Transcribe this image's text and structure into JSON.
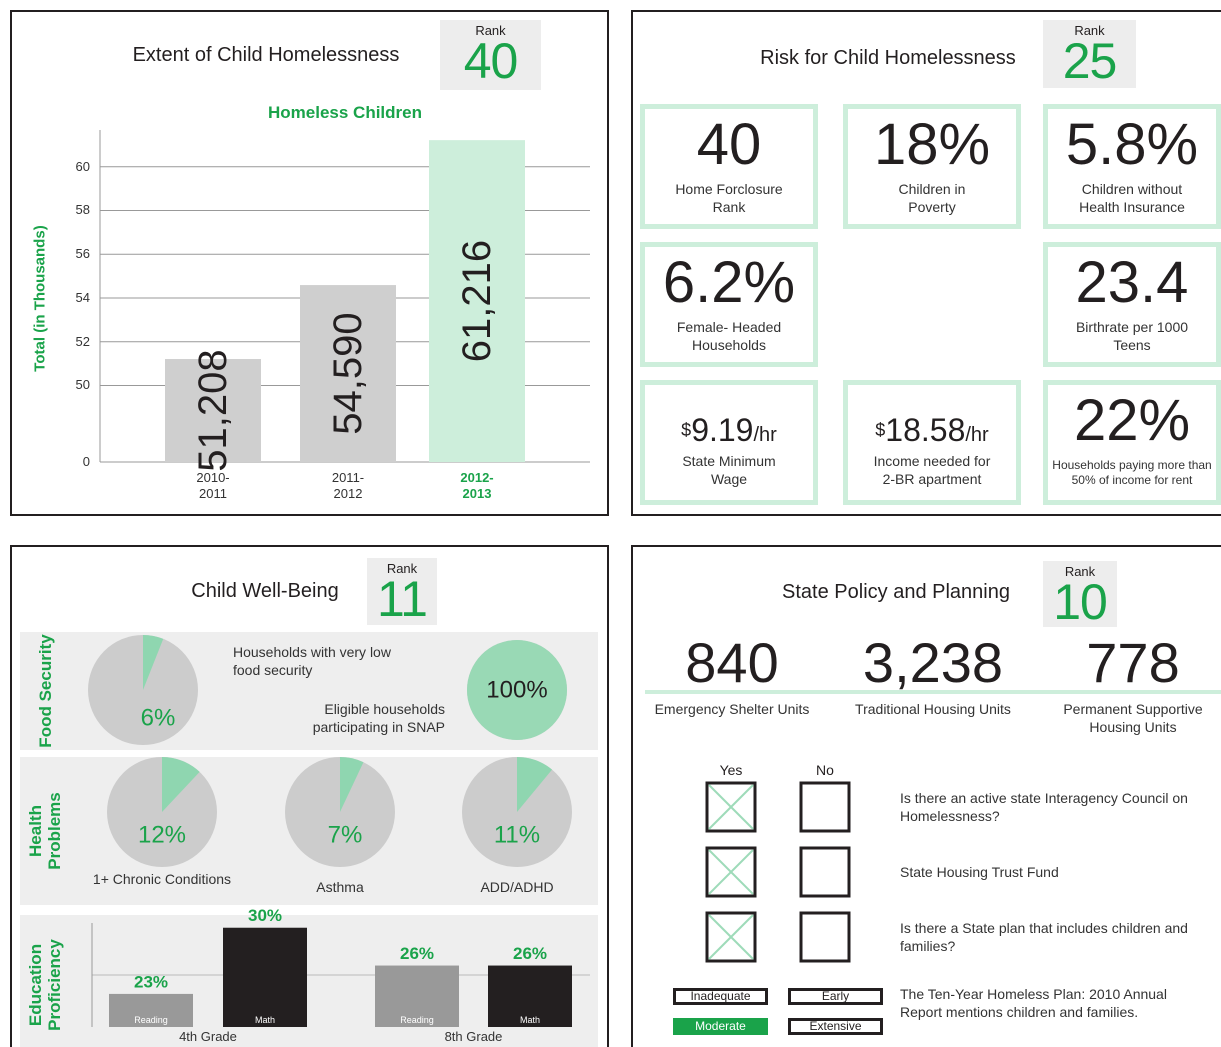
{
  "extent": {
    "title": "Extent of Child Homelessness",
    "rank_label": "Rank",
    "rank": "40"
  },
  "risk": {
    "title": "Risk for Child Homelessness",
    "rank_label": "Rank",
    "rank": "25",
    "stats": [
      {
        "value": "40",
        "label": "Home Forclosure Rank"
      },
      {
        "value": "18%",
        "label": "Children in Poverty"
      },
      {
        "value": "5.8%",
        "label": "Children without Health Insurance"
      },
      {
        "value": "6.2%",
        "label": "Female- Headed Households"
      },
      {
        "value": "23.4",
        "label": "Birthrate per 1000 Teens"
      },
      {
        "prefix": "$",
        "value": "9.19",
        "suffix": "/hr",
        "label": "State Minimum Wage"
      },
      {
        "prefix": "$",
        "value": "18.58",
        "suffix": "/hr",
        "label": "Income needed for 2-BR apartment"
      },
      {
        "value": "22%",
        "label": "Households paying more than 50% of income for rent"
      }
    ]
  },
  "well_being": {
    "title": "Child Well-Being",
    "rank_label": "Rank",
    "rank": "11",
    "rows": [
      "Food Security",
      "Health Problems",
      "Education Proficiency"
    ]
  },
  "policy": {
    "title": "State Policy and Planning",
    "rank_label": "Rank",
    "rank": "10",
    "stats": [
      {
        "value": "840",
        "label": "Emergency Shelter Units"
      },
      {
        "value": "3,238",
        "label": "Traditional Housing Units"
      },
      {
        "value": "778",
        "label": "Permanent Supportive Housing Units"
      }
    ],
    "yes_label": "Yes",
    "no_label": "No",
    "questions": [
      {
        "text": "Is there an active state Interagency Council on Homelessness?",
        "answer_yes": true
      },
      {
        "text": "State Housing Trust Fund",
        "answer_yes": true
      },
      {
        "text": "Is there a State plan that includes children and families?",
        "answer_yes": true
      }
    ],
    "plan_options": [
      "Inadequate",
      "Early",
      "Moderate",
      "Extensive"
    ],
    "plan_selected": "Moderate",
    "plan_text": "The Ten-Year Homeless Plan: 2010 Annual Report mentions children and families."
  },
  "chart_data": [
    {
      "type": "bar",
      "title": "Homeless Children",
      "ylabel": "Total (in Thousands)",
      "categories": [
        "2010-2011",
        "2011-2012",
        "2012-2013"
      ],
      "values": [
        51.208,
        54.59,
        61.216
      ],
      "value_labels": [
        "51,208",
        "54,590",
        "61,216"
      ],
      "color": "#cfcfcf",
      "highlight_index": 2,
      "highlight_color": "#cdeedb",
      "ylim": [
        46.5,
        62
      ],
      "yticks": [
        0,
        50,
        52,
        54,
        56,
        58,
        60
      ],
      "axis_break": true,
      "grid": true
    },
    {
      "type": "pie",
      "caption": "Households with very low food security",
      "values": [
        6
      ],
      "value_labels": [
        "6%"
      ],
      "color": "#8fd6b0",
      "rest_color": "#cccccc"
    },
    {
      "type": "pie",
      "caption": "Eligible households participating in SNAP",
      "values": [
        100
      ],
      "value_labels": [
        "100%"
      ],
      "color": "#99d9b5",
      "rest_color": "#cccccc"
    },
    {
      "type": "pie",
      "caption": "1+ Chronic Conditions",
      "values": [
        12
      ],
      "value_labels": [
        "12%"
      ],
      "color": "#8fd6b0",
      "rest_color": "#cccccc"
    },
    {
      "type": "pie",
      "caption": "Asthma",
      "values": [
        7
      ],
      "value_labels": [
        "7%"
      ],
      "color": "#8fd6b0",
      "rest_color": "#cccccc"
    },
    {
      "type": "pie",
      "caption": "ADD/ADHD",
      "values": [
        11
      ],
      "value_labels": [
        "11%"
      ],
      "color": "#8fd6b0",
      "rest_color": "#cccccc"
    },
    {
      "type": "grouped_bar",
      "categories": [
        "4th Grade",
        "8th Grade"
      ],
      "series": [
        {
          "name": "Reading",
          "color": "#999999",
          "values": [
            23,
            26
          ],
          "value_labels": [
            "23%",
            "26%"
          ]
        },
        {
          "name": "Math",
          "color": "#231f20",
          "values": [
            30,
            26
          ],
          "value_labels": [
            "30%",
            "26%"
          ]
        }
      ],
      "ylim": [
        19.5,
        30.5
      ],
      "yticks": [
        25
      ],
      "grid": true
    }
  ]
}
